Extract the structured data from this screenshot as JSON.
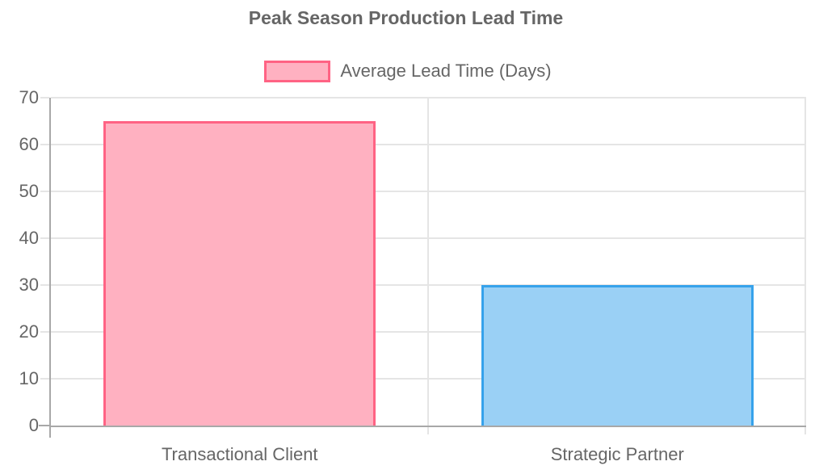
{
  "chart_data": {
    "type": "bar",
    "title": "Peak Season Production Lead Time",
    "categories": [
      "Transactional Client",
      "Strategic Partner"
    ],
    "series": [
      {
        "name": "Average Lead Time (Days)",
        "values": [
          65,
          30
        ],
        "fill_colors": [
          "#ffb1c1",
          "#9ad0f5"
        ],
        "border_colors": [
          "#ff6384",
          "#36a2eb"
        ]
      }
    ],
    "xlabel": "",
    "ylabel": "",
    "ylim": [
      0,
      70
    ],
    "yticks": [
      0,
      10,
      20,
      30,
      40,
      50,
      60,
      70
    ],
    "grid": true,
    "legend_position": "top"
  },
  "legend": {
    "label": "Average Lead Time (Days)",
    "swatch_fill": "#ffb1c1",
    "swatch_border": "#ff6384"
  },
  "colors": {
    "text": "#666666",
    "gridline": "#e5e5e5",
    "axis_line": "#a8a8a8",
    "background": "#ffffff"
  }
}
